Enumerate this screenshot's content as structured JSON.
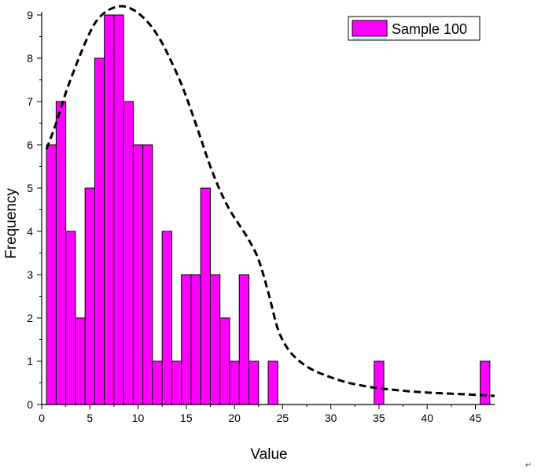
{
  "chart_data": {
    "type": "bar",
    "xlabel": "Value",
    "ylabel": "Frequency",
    "xlim": [
      0,
      47
    ],
    "ylim": [
      0,
      9
    ],
    "xticks": [
      0,
      5,
      10,
      15,
      20,
      25,
      30,
      35,
      40,
      45
    ],
    "yticks": [
      0,
      1,
      2,
      3,
      4,
      5,
      6,
      7,
      8,
      9
    ],
    "grid": false,
    "legend": {
      "position": "top-right",
      "label": "Sample 100"
    },
    "bar_color": "#ff00ff",
    "bar_edge_color": "#000000",
    "bin_width": 1,
    "bins": [
      {
        "x0": 0.5,
        "x1": 1.5,
        "count": 6
      },
      {
        "x0": 1.5,
        "x1": 2.5,
        "count": 7
      },
      {
        "x0": 2.5,
        "x1": 3.5,
        "count": 4
      },
      {
        "x0": 3.5,
        "x1": 4.5,
        "count": 2
      },
      {
        "x0": 4.5,
        "x1": 5.5,
        "count": 5
      },
      {
        "x0": 5.5,
        "x1": 6.5,
        "count": 8
      },
      {
        "x0": 6.5,
        "x1": 7.5,
        "count": 9
      },
      {
        "x0": 7.5,
        "x1": 8.5,
        "count": 9
      },
      {
        "x0": 8.5,
        "x1": 9.5,
        "count": 7
      },
      {
        "x0": 9.5,
        "x1": 10.5,
        "count": 6
      },
      {
        "x0": 10.5,
        "x1": 11.5,
        "count": 6
      },
      {
        "x0": 11.5,
        "x1": 12.5,
        "count": 1
      },
      {
        "x0": 12.5,
        "x1": 13.5,
        "count": 4
      },
      {
        "x0": 13.5,
        "x1": 14.5,
        "count": 1
      },
      {
        "x0": 14.5,
        "x1": 15.5,
        "count": 3
      },
      {
        "x0": 15.5,
        "x1": 16.5,
        "count": 3
      },
      {
        "x0": 16.5,
        "x1": 17.5,
        "count": 5
      },
      {
        "x0": 17.5,
        "x1": 18.5,
        "count": 3
      },
      {
        "x0": 18.5,
        "x1": 19.5,
        "count": 2
      },
      {
        "x0": 19.5,
        "x1": 20.5,
        "count": 1
      },
      {
        "x0": 20.5,
        "x1": 21.5,
        "count": 3
      },
      {
        "x0": 21.5,
        "x1": 22.5,
        "count": 1
      },
      {
        "x0": 23.5,
        "x1": 24.5,
        "count": 1
      },
      {
        "x0": 34.5,
        "x1": 35.5,
        "count": 1
      },
      {
        "x0": 45.5,
        "x1": 46.5,
        "count": 1
      }
    ],
    "fit_curve": {
      "style": "dashed",
      "color": "#000000",
      "points": [
        [
          0.5,
          5.9
        ],
        [
          1.5,
          6.5
        ],
        [
          2.5,
          7.2
        ],
        [
          3.5,
          7.8
        ],
        [
          4.5,
          8.35
        ],
        [
          5.5,
          8.8
        ],
        [
          6.5,
          9.05
        ],
        [
          7.5,
          9.17
        ],
        [
          8.5,
          9.2
        ],
        [
          9.5,
          9.12
        ],
        [
          10.5,
          8.95
        ],
        [
          11.5,
          8.7
        ],
        [
          12.5,
          8.35
        ],
        [
          13.5,
          7.9
        ],
        [
          14.5,
          7.4
        ],
        [
          15.5,
          6.8
        ],
        [
          16.5,
          6.15
        ],
        [
          17.5,
          5.5
        ],
        [
          18.5,
          4.95
        ],
        [
          19.5,
          4.5
        ],
        [
          20.5,
          4.15
        ],
        [
          21.5,
          3.8
        ],
        [
          22.5,
          3.35
        ],
        [
          23.5,
          2.6
        ],
        [
          24.5,
          1.75
        ],
        [
          25.5,
          1.3
        ],
        [
          26.5,
          1.05
        ],
        [
          27.5,
          0.88
        ],
        [
          28.5,
          0.76
        ],
        [
          29.5,
          0.67
        ],
        [
          30.5,
          0.59
        ],
        [
          31.5,
          0.52
        ],
        [
          32.5,
          0.47
        ],
        [
          34.5,
          0.39
        ],
        [
          36.5,
          0.34
        ],
        [
          38.5,
          0.3
        ],
        [
          40.5,
          0.27
        ],
        [
          42.5,
          0.25
        ],
        [
          44.5,
          0.23
        ],
        [
          47,
          0.2
        ]
      ]
    },
    "corner_mark": "↵"
  }
}
